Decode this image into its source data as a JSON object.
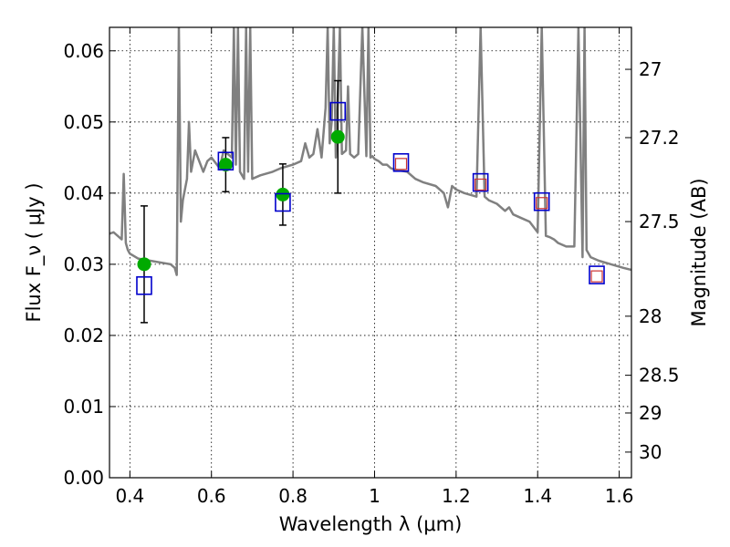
{
  "chart_data": {
    "type": "scatter",
    "xlabel": "Wavelength λ (μm)",
    "ylabel": "Flux F_ν ( μJy )",
    "ylabel_right": "Magnitude (AB)",
    "xlim": [
      0.35,
      1.63
    ],
    "ylim": [
      0.0,
      0.0633
    ],
    "x_ticks": [
      0.4,
      0.6,
      0.8,
      1.0,
      1.2,
      1.4,
      1.6
    ],
    "x_tick_labels": [
      "0.4",
      "0.6",
      "0.8",
      "1",
      "1.2",
      "1.4",
      "1.6"
    ],
    "y_ticks": [
      0.0,
      0.01,
      0.02,
      0.03,
      0.04,
      0.05,
      0.06
    ],
    "y_tick_labels": [
      "0.00",
      "0.01",
      "0.02",
      "0.03",
      "0.04",
      "0.05",
      "0.06"
    ],
    "right_ticks": [
      {
        "label": "27",
        "flux": 0.0574
      },
      {
        "label": "27.2",
        "flux": 0.0478
      },
      {
        "label": "27.5",
        "flux": 0.036
      },
      {
        "label": "28",
        "flux": 0.0227
      },
      {
        "label": "28.5",
        "flux": 0.0144
      },
      {
        "label": "29",
        "flux": 0.0091
      },
      {
        "label": "30",
        "flux": 0.0036
      }
    ],
    "grid": true,
    "series": [
      {
        "kind": "line",
        "color": "#808080",
        "x": [
          0.35,
          0.36,
          0.38,
          0.385,
          0.39,
          0.395,
          0.4,
          0.42,
          0.45,
          0.48,
          0.5,
          0.51,
          0.515,
          0.52,
          0.525,
          0.53,
          0.54,
          0.545,
          0.55,
          0.56,
          0.58,
          0.59,
          0.6,
          0.62,
          0.63,
          0.65,
          0.655,
          0.66,
          0.665,
          0.67,
          0.68,
          0.685,
          0.69,
          0.695,
          0.7,
          0.72,
          0.75,
          0.77,
          0.8,
          0.82,
          0.83,
          0.84,
          0.85,
          0.86,
          0.87,
          0.88,
          0.885,
          0.89,
          0.895,
          0.9,
          0.905,
          0.91,
          0.915,
          0.92,
          0.93,
          0.935,
          0.94,
          0.95,
          0.96,
          0.97,
          0.98,
          0.985,
          0.99,
          0.995,
          1.0,
          1.01,
          1.02,
          1.03,
          1.04,
          1.05,
          1.08,
          1.1,
          1.12,
          1.15,
          1.17,
          1.18,
          1.19,
          1.2,
          1.22,
          1.25,
          1.26,
          1.27,
          1.28,
          1.3,
          1.32,
          1.33,
          1.34,
          1.36,
          1.38,
          1.4,
          1.41,
          1.42,
          1.43,
          1.44,
          1.45,
          1.47,
          1.49,
          1.5,
          1.51,
          1.515,
          1.52,
          1.53,
          1.55,
          1.58,
          1.61,
          1.63
        ],
        "y": [
          0.0343,
          0.0345,
          0.0335,
          0.0427,
          0.033,
          0.032,
          0.0315,
          0.0308,
          0.0305,
          0.0302,
          0.03,
          0.0295,
          0.0285,
          0.0633,
          0.036,
          0.039,
          0.042,
          0.05,
          0.043,
          0.046,
          0.043,
          0.0445,
          0.045,
          0.0435,
          0.046,
          0.045,
          0.0633,
          0.044,
          0.0633,
          0.043,
          0.042,
          0.0633,
          0.043,
          0.0633,
          0.042,
          0.0425,
          0.043,
          0.0435,
          0.044,
          0.0445,
          0.047,
          0.045,
          0.0455,
          0.049,
          0.045,
          0.052,
          0.0633,
          0.047,
          0.05,
          0.0633,
          0.045,
          0.054,
          0.0633,
          0.0455,
          0.046,
          0.055,
          0.0455,
          0.045,
          0.0455,
          0.0633,
          0.0452,
          0.0633,
          0.045,
          0.0452,
          0.0448,
          0.0445,
          0.044,
          0.044,
          0.0435,
          0.0433,
          0.043,
          0.042,
          0.0415,
          0.041,
          0.04,
          0.038,
          0.041,
          0.0405,
          0.04,
          0.0395,
          0.0633,
          0.0395,
          0.039,
          0.0385,
          0.0375,
          0.038,
          0.037,
          0.0365,
          0.036,
          0.0345,
          0.0633,
          0.034,
          0.0338,
          0.0335,
          0.033,
          0.0325,
          0.0325,
          0.0633,
          0.031,
          0.0633,
          0.032,
          0.031,
          0.0305,
          0.03,
          0.0295,
          0.0292
        ]
      },
      {
        "kind": "errorbar",
        "color": "#000000",
        "x": [
          0.435,
          0.635,
          0.775,
          0.91
        ],
        "y": [
          0.03,
          0.044,
          0.0398,
          0.0479
        ],
        "lo": [
          0.0218,
          0.0402,
          0.0355,
          0.04
        ],
        "hi": [
          0.0382,
          0.0478,
          0.0441,
          0.0558
        ]
      },
      {
        "kind": "circle",
        "color": "#00aa00",
        "x": [
          0.435,
          0.635,
          0.775,
          0.91
        ],
        "y": [
          0.03,
          0.044,
          0.0398,
          0.0479
        ]
      },
      {
        "kind": "square",
        "color": "#0000cc",
        "x": [
          0.435,
          0.635,
          0.775,
          0.91,
          1.065,
          1.26,
          1.41,
          1.545
        ],
        "y": [
          0.027,
          0.0445,
          0.0387,
          0.0515,
          0.0443,
          0.0415,
          0.0388,
          0.0285
        ]
      },
      {
        "kind": "small-square",
        "color": "#cc3333",
        "x": [
          1.065,
          1.26,
          1.41,
          1.545
        ],
        "y": [
          0.0441,
          0.0412,
          0.0386,
          0.0283
        ]
      }
    ]
  }
}
